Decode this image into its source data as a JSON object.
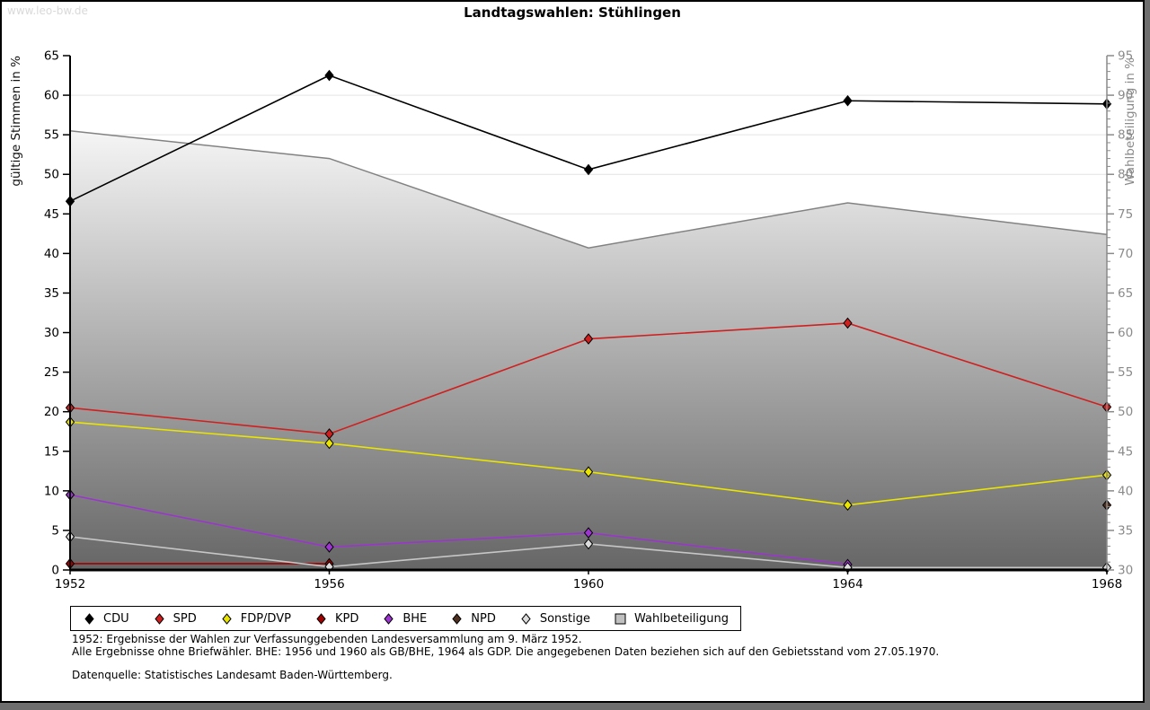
{
  "watermark": "www.leo-bw.de",
  "title": "Landtagswahlen: Stühlingen",
  "chart_data": {
    "type": "line",
    "x": [
      1952,
      1956,
      1960,
      1964,
      1968
    ],
    "left_axis": {
      "label": "gültige Stimmen in %",
      "min": 0,
      "max": 65,
      "tick_step": 5
    },
    "right_axis": {
      "label": "Wahlbeteiligung in %",
      "min": 30,
      "max": 95,
      "tick_step": 5,
      "minor_step": 1
    },
    "grid": "horizontal-major",
    "legend_position": "bottom",
    "series": [
      {
        "name": "CDU",
        "axis": "left",
        "type": "line",
        "marker": "diamond",
        "color": "#000000",
        "values": [
          46.6,
          62.5,
          50.6,
          59.3,
          58.9
        ]
      },
      {
        "name": "SPD",
        "axis": "left",
        "type": "line",
        "marker": "diamond",
        "color": "#d01f1f",
        "values": [
          20.5,
          17.2,
          29.2,
          31.2,
          20.6
        ]
      },
      {
        "name": "FDP/DVP",
        "axis": "left",
        "type": "line",
        "marker": "diamond",
        "color": "#e9e400",
        "values": [
          18.7,
          16.0,
          12.4,
          8.2,
          12.0
        ]
      },
      {
        "name": "KPD",
        "axis": "left",
        "type": "line",
        "marker": "diamond",
        "color": "#a00000",
        "values": [
          0.8,
          0.8,
          null,
          null,
          null
        ]
      },
      {
        "name": "BHE",
        "axis": "left",
        "type": "line",
        "marker": "diamond",
        "color": "#9c35cf",
        "values": [
          9.5,
          2.9,
          4.7,
          0.7,
          null
        ]
      },
      {
        "name": "NPD",
        "axis": "left",
        "type": "line",
        "marker": "diamond",
        "color": "#4f3020",
        "values": [
          null,
          null,
          null,
          null,
          8.2
        ]
      },
      {
        "name": "Sonstige",
        "axis": "left",
        "type": "line",
        "marker": "diamond",
        "color": "#c6c6c6",
        "marker_fill": "#dcdcdc",
        "values": [
          4.2,
          0.4,
          3.3,
          0.3,
          0.3
        ]
      },
      {
        "name": "Wahlbeteiligung",
        "axis": "right",
        "type": "area",
        "marker": "square",
        "color": "#c0c0c0",
        "edge_color": "#828282",
        "gradient_top": "#f5f5f5",
        "gradient_bottom": "#666666",
        "values": [
          85.5,
          82.0,
          70.7,
          76.4,
          72.4
        ]
      }
    ]
  },
  "footnotes": {
    "line1": "1952: Ergebnisse der Wahlen zur Verfassunggebenden Landesversammlung am 9. März 1952.",
    "line2": "Alle Ergebnisse ohne Briefwähler. BHE: 1956 und 1960 als GB/BHE, 1964 als GDP. Die angegebenen Daten beziehen sich auf den Gebietsstand vom 27.05.1970.",
    "line3": "Datenquelle: Statistisches Landesamt Baden-Württemberg."
  },
  "colors": {
    "frame": "#6e6e6e",
    "grid": "#e4e4e4",
    "left_axis": "#000000",
    "right_axis": "#8a8a8a",
    "watermark": "#d9d9d9"
  }
}
